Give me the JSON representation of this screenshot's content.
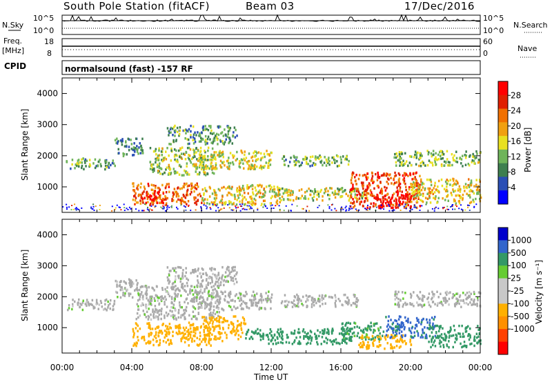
{
  "header": {
    "station": "South Pole Station (fitACF)",
    "beam": "Beam 03",
    "date": "17/Dec/2016"
  },
  "strip": {
    "nsky_label": "N.Sky",
    "nsky_ticks": [
      "10^5",
      "10^0"
    ],
    "nsearch_label": "N.Search",
    "nsearch_ticks": [
      "10^5",
      "10^0"
    ],
    "freq_label": "Freq.",
    "freq_unit": "[MHz]",
    "freq_ticks": [
      "18",
      "8"
    ],
    "nave_label": "Nave",
    "nave_ticks": [
      "60",
      "0"
    ],
    "cpid_label": "CPID",
    "cpid_text": "normalsound (fast) -157 RF"
  },
  "colors": {
    "power": [
      "#0000ff",
      "#2b4fb5",
      "#3e7f4f",
      "#6fb45a",
      "#e8e020",
      "#f0a010",
      "#f07000",
      "#e02000",
      "#ff0000"
    ],
    "velocity": [
      "#ff0000",
      "#ff4000",
      "#ff9000",
      "#ffb000",
      "#c8c8c8",
      "#c8c8c8",
      "#66cc33",
      "#339966",
      "#3366cc",
      "#0000cc"
    ],
    "ground_scatter": "#aaaaaa"
  },
  "chart_data": [
    {
      "type": "heatmap",
      "name": "power",
      "xlabel": "Time UT",
      "ylabel": "Slant Range [km]",
      "x_ticks": [
        "00:00",
        "04:00",
        "08:00",
        "12:00",
        "16:00",
        "20:00",
        "00:00"
      ],
      "xlim_hours": [
        0,
        24
      ],
      "y_ticks": [
        "1000",
        "2000",
        "3000",
        "4000"
      ],
      "ylim": [
        180,
        4500
      ],
      "colorbar": {
        "label": "Power [dB]",
        "ticks": [
          "4",
          "8",
          "12",
          "16",
          "20",
          "24",
          "28"
        ],
        "range": [
          0,
          30
        ]
      },
      "echo_regions": [
        {
          "t0": 0.2,
          "t1": 3.0,
          "r0": 1600,
          "r1": 1950,
          "level": 10
        },
        {
          "t0": 3.0,
          "t1": 4.6,
          "r0": 2000,
          "r1": 2600,
          "level": 8
        },
        {
          "t0": 4.0,
          "t1": 8.0,
          "r0": 450,
          "r1": 1150,
          "level": 22
        },
        {
          "t0": 4.5,
          "t1": 5.8,
          "r0": 500,
          "r1": 900,
          "level": 27
        },
        {
          "t0": 5.0,
          "t1": 8.8,
          "r0": 1400,
          "r1": 2300,
          "level": 13
        },
        {
          "t0": 6.0,
          "t1": 10.0,
          "r0": 2400,
          "r1": 3000,
          "level": 10
        },
        {
          "t0": 7.5,
          "t1": 12.0,
          "r0": 1600,
          "r1": 2200,
          "level": 15
        },
        {
          "t0": 8.0,
          "t1": 12.5,
          "r0": 450,
          "r1": 1100,
          "level": 16
        },
        {
          "t0": 12.0,
          "t1": 17.5,
          "r0": 600,
          "r1": 1000,
          "level": 14
        },
        {
          "t0": 12.5,
          "t1": 16.5,
          "r0": 1700,
          "r1": 2050,
          "level": 11
        },
        {
          "t0": 16.5,
          "t1": 20.5,
          "r0": 350,
          "r1": 1500,
          "level": 24
        },
        {
          "t0": 18.0,
          "t1": 20.0,
          "r0": 350,
          "r1": 800,
          "level": 28
        },
        {
          "t0": 20.0,
          "t1": 24.0,
          "r0": 500,
          "r1": 1300,
          "level": 16
        },
        {
          "t0": 19.0,
          "t1": 24.0,
          "r0": 1700,
          "r1": 2200,
          "level": 12
        }
      ]
    },
    {
      "type": "heatmap",
      "name": "velocity",
      "xlabel": "Time UT",
      "ylabel": "Slant Range [km]",
      "x_ticks": [
        "00:00",
        "04:00",
        "08:00",
        "12:00",
        "16:00",
        "20:00",
        "00:00"
      ],
      "xlim_hours": [
        0,
        24
      ],
      "y_ticks": [
        "1000",
        "2000",
        "3000",
        "4000"
      ],
      "ylim": [
        180,
        4500
      ],
      "colorbar": {
        "label": "Velocity [m s⁻¹]",
        "ticks": [
          "1000",
          "500",
          "100",
          "25",
          "-25",
          "-100",
          "-500",
          "-1000"
        ],
        "range": [
          -1000,
          1000
        ]
      },
      "echo_regions": [
        {
          "t0": 0.2,
          "t1": 3.0,
          "r0": 1600,
          "r1": 1950,
          "level": 0
        },
        {
          "t0": 3.0,
          "t1": 4.6,
          "r0": 2000,
          "r1": 2600,
          "level": 0
        },
        {
          "t0": 4.0,
          "t1": 8.5,
          "r0": 450,
          "r1": 1200,
          "level": -200
        },
        {
          "t0": 4.2,
          "t1": 9.0,
          "r0": 1300,
          "r1": 2400,
          "level": 0
        },
        {
          "t0": 6.0,
          "t1": 10.0,
          "r0": 2400,
          "r1": 3000,
          "level": 0
        },
        {
          "t0": 7.5,
          "t1": 12.0,
          "r0": 1600,
          "r1": 2200,
          "level": 0
        },
        {
          "t0": 8.0,
          "t1": 10.5,
          "r0": 600,
          "r1": 1400,
          "level": -200
        },
        {
          "t0": 10.5,
          "t1": 16.5,
          "r0": 500,
          "r1": 1000,
          "level": 200
        },
        {
          "t0": 12.5,
          "t1": 17.0,
          "r0": 1700,
          "r1": 2100,
          "level": 0
        },
        {
          "t0": 16.0,
          "t1": 18.5,
          "r0": 600,
          "r1": 1200,
          "level": 150
        },
        {
          "t0": 17.0,
          "t1": 20.0,
          "r0": 350,
          "r1": 800,
          "level": -300
        },
        {
          "t0": 18.5,
          "t1": 21.5,
          "r0": 700,
          "r1": 1400,
          "level": 600
        },
        {
          "t0": 21.0,
          "t1": 24.0,
          "r0": 400,
          "r1": 1100,
          "level": 300
        },
        {
          "t0": 19.0,
          "t1": 24.0,
          "r0": 1700,
          "r1": 2200,
          "level": 0
        }
      ]
    }
  ]
}
